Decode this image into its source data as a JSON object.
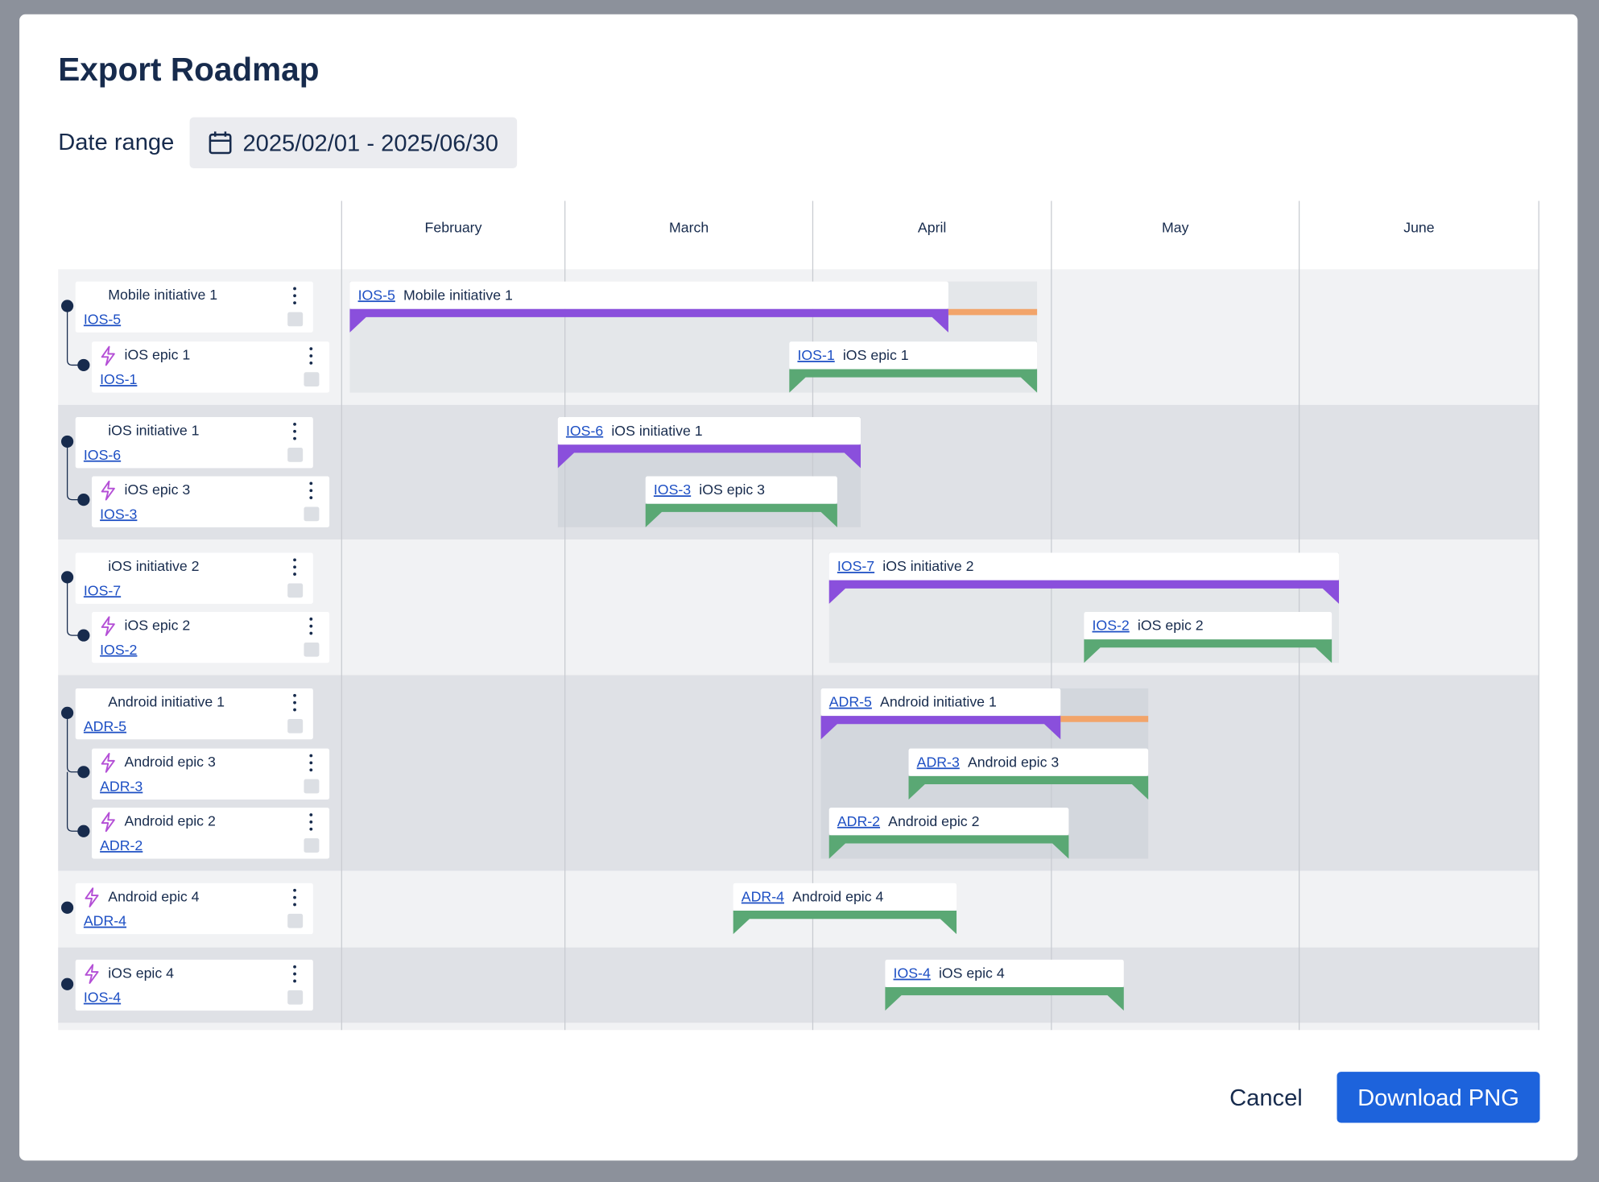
{
  "modal": {
    "title": "Export Roadmap",
    "date_range_label": "Date range",
    "date_range": "2025/02/01 - 2025/06/30"
  },
  "months": [
    "February",
    "March",
    "April",
    "May",
    "June"
  ],
  "groups": [
    {
      "items": [
        {
          "key": "IOS-5",
          "name": "Mobile initiative 1"
        },
        {
          "key": "IOS-1",
          "name": "iOS epic 1"
        }
      ]
    },
    {
      "items": [
        {
          "key": "IOS-6",
          "name": "iOS initiative 1"
        },
        {
          "key": "IOS-3",
          "name": "iOS epic 3"
        }
      ]
    },
    {
      "items": [
        {
          "key": "IOS-7",
          "name": "iOS initiative 2"
        },
        {
          "key": "IOS-2",
          "name": "iOS epic 2"
        }
      ]
    },
    {
      "items": [
        {
          "key": "ADR-5",
          "name": "Android initiative 1"
        },
        {
          "key": "ADR-3",
          "name": "Android epic 3"
        },
        {
          "key": "ADR-2",
          "name": "Android epic 2"
        }
      ]
    },
    {
      "items": [
        {
          "key": "ADR-4",
          "name": "Android epic 4"
        }
      ]
    },
    {
      "items": [
        {
          "key": "IOS-4",
          "name": "iOS epic 4"
        }
      ]
    }
  ],
  "buttons": {
    "cancel": "Cancel",
    "download": "Download PNG"
  }
}
